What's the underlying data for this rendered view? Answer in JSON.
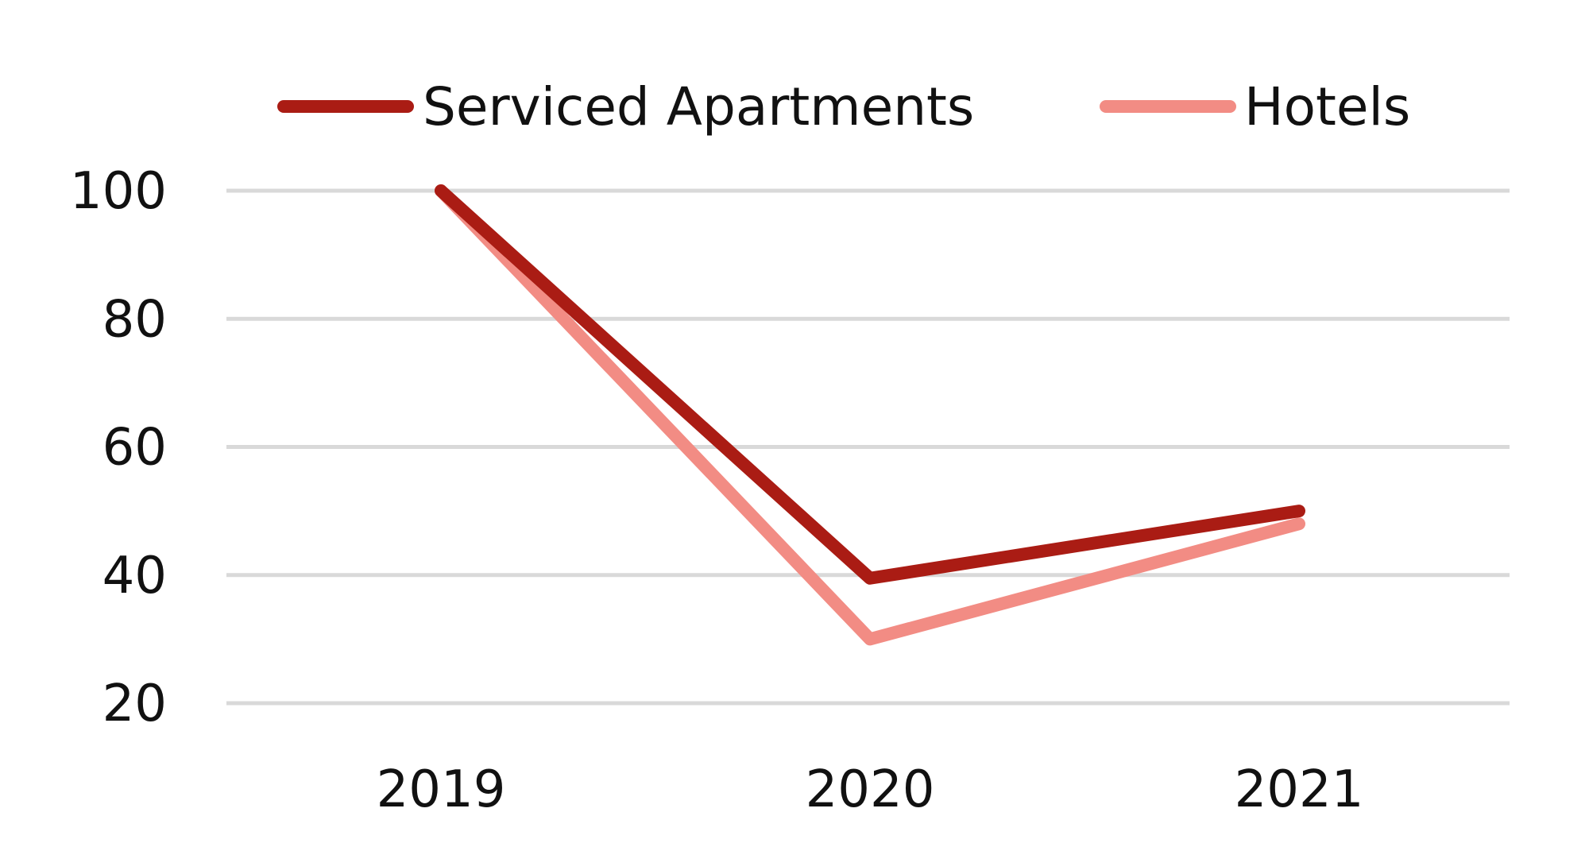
{
  "chart_data": {
    "type": "line",
    "categories": [
      "2019",
      "2020",
      "2021"
    ],
    "series": [
      {
        "name": "Serviced Apartments",
        "values": [
          100,
          39.5,
          50
        ],
        "color": "#aa1c14"
      },
      {
        "name": "Hotels",
        "values": [
          100,
          30,
          48
        ],
        "color": "#f28c84"
      }
    ],
    "yticks": [
      "20",
      "40",
      "60",
      "80",
      "100"
    ],
    "ylim": [
      20,
      100
    ],
    "grid": true,
    "legend_position": "top"
  }
}
